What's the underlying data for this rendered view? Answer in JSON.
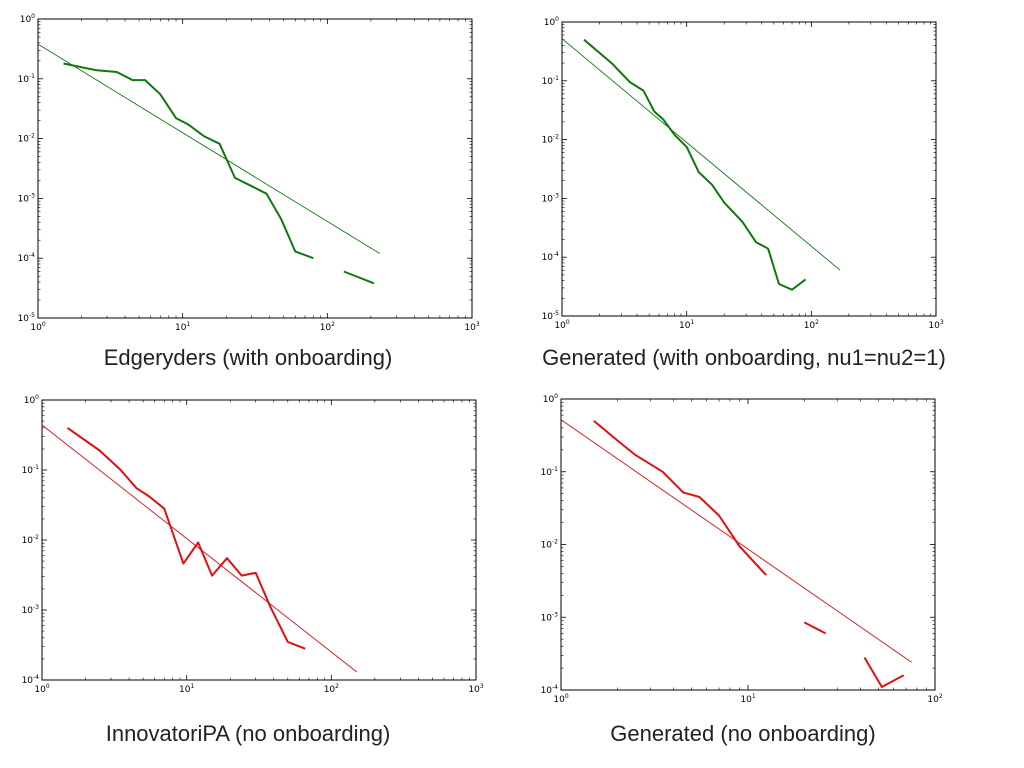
{
  "chart_data": [
    {
      "type": "line",
      "caption": "Edgeryders (with onboarding)",
      "xscale": "log",
      "yscale": "log",
      "xlim": [
        1,
        1000
      ],
      "ylim": [
        1e-05,
        1
      ],
      "x_ticks": [
        {
          "base": "10",
          "exp": "0",
          "v": 1
        },
        {
          "base": "10",
          "exp": "1",
          "v": 10
        },
        {
          "base": "10",
          "exp": "2",
          "v": 100
        },
        {
          "base": "10",
          "exp": "3",
          "v": 1000
        }
      ],
      "y_ticks": [
        {
          "base": "10",
          "exp": "-5",
          "v": 1e-05
        },
        {
          "base": "10",
          "exp": "-4",
          "v": 0.0001
        },
        {
          "base": "10",
          "exp": "-3",
          "v": 0.001
        },
        {
          "base": "10",
          "exp": "-2",
          "v": 0.01
        },
        {
          "base": "10",
          "exp": "-1",
          "v": 0.1
        },
        {
          "base": "10",
          "exp": "0",
          "v": 1
        }
      ],
      "color": "#107810",
      "series": [
        {
          "kind": "data",
          "segments": [
            [
              [
                1.5,
                0.18
              ],
              [
                2.5,
                0.14
              ],
              [
                3.5,
                0.13
              ],
              [
                4.5,
                0.095
              ],
              [
                5.5,
                0.095
              ],
              [
                7,
                0.055
              ],
              [
                9,
                0.022
              ],
              [
                11,
                0.017
              ],
              [
                14,
                0.011
              ],
              [
                18,
                0.0082
              ],
              [
                23,
                0.0022
              ],
              [
                30,
                0.0016
              ],
              [
                38,
                0.0012
              ],
              [
                48,
                0.00045
              ],
              [
                60,
                0.00013
              ],
              [
                80,
                0.0001
              ]
            ],
            [
              [
                130,
                6e-05
              ],
              [
                210,
                3.8e-05
              ]
            ]
          ]
        },
        {
          "kind": "fit",
          "segments": [
            [
              [
                1,
                0.38
              ],
              [
                230,
                0.00012
              ]
            ]
          ]
        }
      ]
    },
    {
      "type": "line",
      "caption": "Generated (with onboarding, nu1=nu2=1)",
      "xscale": "log",
      "yscale": "log",
      "xlim": [
        1,
        1000
      ],
      "ylim": [
        1e-05,
        1
      ],
      "x_ticks": [
        {
          "base": "10",
          "exp": "0",
          "v": 1
        },
        {
          "base": "10",
          "exp": "1",
          "v": 10
        },
        {
          "base": "10",
          "exp": "2",
          "v": 100
        },
        {
          "base": "10",
          "exp": "3",
          "v": 1000
        }
      ],
      "y_ticks": [
        {
          "base": "10",
          "exp": "-5",
          "v": 1e-05
        },
        {
          "base": "10",
          "exp": "-4",
          "v": 0.0001
        },
        {
          "base": "10",
          "exp": "-3",
          "v": 0.001
        },
        {
          "base": "10",
          "exp": "-2",
          "v": 0.01
        },
        {
          "base": "10",
          "exp": "-1",
          "v": 0.1
        },
        {
          "base": "10",
          "exp": "0",
          "v": 1
        }
      ],
      "color": "#107810",
      "series": [
        {
          "kind": "data",
          "segments": [
            [
              [
                1.5,
                0.5
              ],
              [
                2.5,
                0.2
              ],
              [
                3.5,
                0.095
              ],
              [
                4.5,
                0.068
              ],
              [
                5.5,
                0.03
              ],
              [
                6.5,
                0.022
              ],
              [
                8,
                0.012
              ],
              [
                10,
                0.0075
              ],
              [
                12.5,
                0.0028
              ],
              [
                16,
                0.0017
              ],
              [
                20,
                0.00085
              ],
              [
                28,
                0.0004
              ],
              [
                36,
                0.00018
              ],
              [
                45,
                0.00014
              ],
              [
                55,
                3.5e-05
              ],
              [
                70,
                2.8e-05
              ],
              [
                90,
                4.2e-05
              ]
            ]
          ]
        },
        {
          "kind": "fit",
          "segments": [
            [
              [
                1,
                0.52
              ],
              [
                170,
                6e-05
              ]
            ]
          ]
        }
      ]
    },
    {
      "type": "line",
      "caption": "InnovatoriPA (no onboarding)",
      "xscale": "log",
      "yscale": "log",
      "xlim": [
        1,
        1000
      ],
      "ylim": [
        0.0001,
        1
      ],
      "x_ticks": [
        {
          "base": "10",
          "exp": "0",
          "v": 1
        },
        {
          "base": "10",
          "exp": "1",
          "v": 10
        },
        {
          "base": "10",
          "exp": "2",
          "v": 100
        },
        {
          "base": "10",
          "exp": "3",
          "v": 1000
        }
      ],
      "y_ticks": [
        {
          "base": "10",
          "exp": "-4",
          "v": 0.0001
        },
        {
          "base": "10",
          "exp": "-3",
          "v": 0.001
        },
        {
          "base": "10",
          "exp": "-2",
          "v": 0.01
        },
        {
          "base": "10",
          "exp": "-1",
          "v": 0.1
        },
        {
          "base": "10",
          "exp": "0",
          "v": 1
        }
      ],
      "color": "#e01010",
      "series": [
        {
          "kind": "data",
          "segments": [
            [
              [
                1.5,
                0.4
              ],
              [
                2.5,
                0.19
              ],
              [
                3.5,
                0.1
              ],
              [
                4.5,
                0.055
              ],
              [
                5.5,
                0.042
              ],
              [
                7,
                0.028
              ],
              [
                9.5,
                0.0046
              ],
              [
                12,
                0.0092
              ],
              [
                15,
                0.0031
              ],
              [
                19,
                0.0055
              ],
              [
                24,
                0.0031
              ],
              [
                30,
                0.0034
              ],
              [
                38,
                0.0011
              ],
              [
                50,
                0.00035
              ],
              [
                66,
                0.00028
              ]
            ]
          ]
        },
        {
          "kind": "fit",
          "segments": [
            [
              [
                1,
                0.44
              ],
              [
                150,
                0.00013
              ]
            ]
          ]
        }
      ]
    },
    {
      "type": "line",
      "caption": "Generated (no onboarding)",
      "xscale": "log",
      "yscale": "log",
      "xlim": [
        1,
        100
      ],
      "ylim": [
        0.0001,
        1
      ],
      "x_ticks": [
        {
          "base": "10",
          "exp": "0",
          "v": 1
        },
        {
          "base": "10",
          "exp": "1",
          "v": 10
        },
        {
          "base": "10",
          "exp": "2",
          "v": 100
        }
      ],
      "y_ticks": [
        {
          "base": "10",
          "exp": "-4",
          "v": 0.0001
        },
        {
          "base": "10",
          "exp": "-3",
          "v": 0.001
        },
        {
          "base": "10",
          "exp": "-2",
          "v": 0.01
        },
        {
          "base": "10",
          "exp": "-1",
          "v": 0.1
        },
        {
          "base": "10",
          "exp": "0",
          "v": 1
        }
      ],
      "color": "#e01010",
      "series": [
        {
          "kind": "data",
          "segments": [
            [
              [
                1.5,
                0.5
              ],
              [
                2,
                0.27
              ],
              [
                2.5,
                0.17
              ],
              [
                3.5,
                0.1
              ],
              [
                4.5,
                0.052
              ],
              [
                5.5,
                0.045
              ],
              [
                7,
                0.025
              ],
              [
                9,
                0.0095
              ],
              [
                12.5,
                0.0038
              ]
            ],
            [
              [
                20,
                0.00085
              ],
              [
                26,
                0.0006
              ]
            ],
            [
              [
                42,
                0.00028
              ],
              [
                52,
                0.00011
              ],
              [
                68,
                0.00016
              ]
            ]
          ]
        },
        {
          "kind": "fit",
          "segments": [
            [
              [
                1,
                0.52
              ],
              [
                75,
                0.00024
              ]
            ]
          ]
        }
      ]
    }
  ]
}
